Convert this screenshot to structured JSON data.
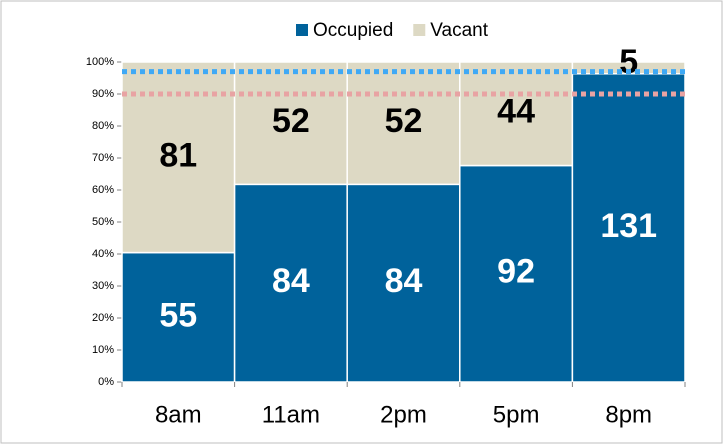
{
  "chart_data": {
    "type": "stacked_percent_bar",
    "categories": [
      "8am",
      "11am",
      "2pm",
      "5pm",
      "8pm"
    ],
    "series": [
      {
        "name": "Occupied",
        "color": "#00629b",
        "label_color": "#ffffff",
        "values": [
          55,
          84,
          84,
          92,
          131
        ]
      },
      {
        "name": "Vacant",
        "color": "#ddd9c4",
        "label_color": "#000000",
        "values": [
          81,
          52,
          52,
          44,
          5
        ]
      }
    ],
    "ylim": [
      0,
      100
    ],
    "yticks": [
      {
        "value": 0,
        "label": "0%"
      },
      {
        "value": 10,
        "label": "10%"
      },
      {
        "value": 20,
        "label": "20%"
      },
      {
        "value": 30,
        "label": "30%"
      },
      {
        "value": 40,
        "label": "40%"
      },
      {
        "value": 50,
        "label": "50%"
      },
      {
        "value": 60,
        "label": "60%"
      },
      {
        "value": 70,
        "label": "70%"
      },
      {
        "value": 80,
        "label": "80%"
      },
      {
        "value": 90,
        "label": "90%"
      },
      {
        "value": 100,
        "label": "100%"
      }
    ],
    "reference_lines": [
      {
        "value": 97,
        "color": "#3fa9f5"
      },
      {
        "value": 90,
        "color": "#e8a3a3"
      }
    ],
    "legend": "top"
  }
}
